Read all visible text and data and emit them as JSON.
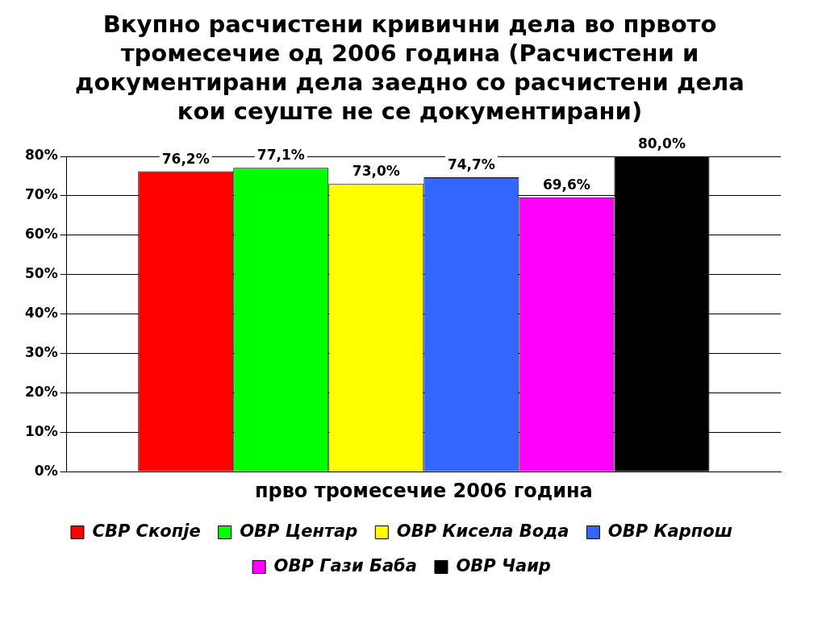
{
  "chart_data": {
    "type": "bar",
    "title": "Вкупно расчистени кривични дела во првото тромесечие од 2006 година (Расчистени и документирани дела заедно со расчистени дела кои сеуште не се документирани)",
    "categories": [
      "прво тромесечие 2006 година"
    ],
    "series": [
      {
        "name": "СВР Скопје",
        "color": "#ff0000",
        "values": [
          76.2
        ],
        "value_labels": [
          "76,2%"
        ]
      },
      {
        "name": "ОВР Центар",
        "color": "#00ff00",
        "values": [
          77.1
        ],
        "value_labels": [
          "77,1%"
        ]
      },
      {
        "name": "ОВР Кисела Вода",
        "color": "#ffff00",
        "values": [
          73.0
        ],
        "value_labels": [
          "73,0%"
        ]
      },
      {
        "name": "ОВР Карпош",
        "color": "#3366ff",
        "values": [
          74.7
        ],
        "value_labels": [
          "74,7%"
        ]
      },
      {
        "name": "ОВР Гази Баба",
        "color": "#ff00ff",
        "values": [
          69.6
        ],
        "value_labels": [
          "69,6%"
        ]
      },
      {
        "name": "ОВР Чаир",
        "color": "#000000",
        "values": [
          80.0
        ],
        "value_labels": [
          "80,0%"
        ]
      }
    ],
    "ylim": [
      0,
      80
    ],
    "yticks": [
      {
        "value": 0,
        "label": "0%"
      },
      {
        "value": 10,
        "label": "10%"
      },
      {
        "value": 20,
        "label": "20%"
      },
      {
        "value": 30,
        "label": "30%"
      },
      {
        "value": 40,
        "label": "40%"
      },
      {
        "value": 50,
        "label": "50%"
      },
      {
        "value": 60,
        "label": "60%"
      },
      {
        "value": 70,
        "label": "70%"
      },
      {
        "value": 80,
        "label": "80%"
      }
    ],
    "grid": "y",
    "legend": "bottom"
  }
}
